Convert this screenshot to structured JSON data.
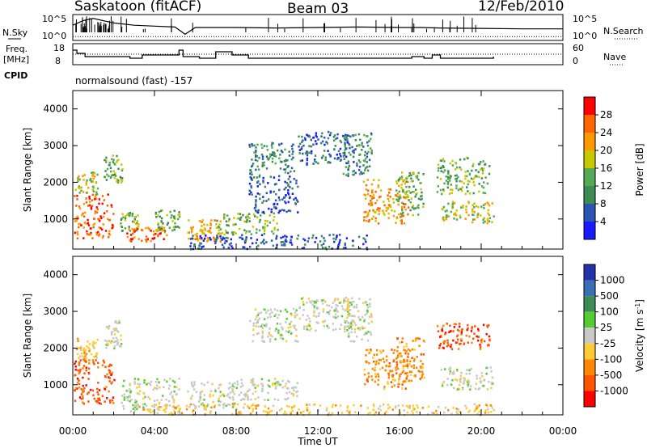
{
  "header": {
    "station": "Saskatoon (fitACF)",
    "beam": "Beam 03",
    "date": "12/Feb/2010"
  },
  "panel_labels": {
    "nsky": "N.Sky",
    "nsearch": "N.Search",
    "freq_top": "Freq.",
    "freq_unit": "[MHz]",
    "nave": "Nave",
    "cpid": "CPID",
    "cpid_value": "normalsound (fast) -157",
    "noise_ticks_left": [
      "10^5",
      "10^0"
    ],
    "noise_ticks_right": [
      "10^5",
      "10^0"
    ],
    "freq_ticks_left": [
      "18",
      "8"
    ],
    "freq_ticks_right": [
      "60",
      "0"
    ]
  },
  "colors": {
    "power": [
      "#1a1aff",
      "#2a55b3",
      "#3c8c55",
      "#55aa55",
      "#c8c800",
      "#ff9900",
      "#ff6600",
      "#ff0000"
    ],
    "velocity": [
      "#ff0000",
      "#ff5500",
      "#ff8800",
      "#ffcc33",
      "#c8c8c8",
      "#55cc33",
      "#3c8c55",
      "#3a6fb8",
      "#2233aa"
    ]
  },
  "chart_data": [
    {
      "type": "line",
      "name": "noise",
      "x_unit": "hours UT",
      "xlim": [
        0,
        24
      ],
      "series": [
        {
          "name": "N.Sky",
          "x": [
            0,
            0.5,
            1,
            2,
            3,
            4,
            5,
            5.5,
            6,
            8,
            10,
            12,
            14,
            16,
            17,
            18,
            20,
            22,
            24
          ],
          "y": [
            3,
            4,
            4.5,
            3.5,
            3,
            2.8,
            2.6,
            1,
            2.5,
            2.5,
            2.4,
            2.5,
            2.6,
            2.5,
            2.5,
            2.4,
            2.3,
            2.2,
            2.2
          ]
        },
        {
          "name": "N.Search",
          "x": [
            0,
            24
          ],
          "y": [
            0.5,
            0.5
          ]
        }
      ]
    },
    {
      "type": "line",
      "name": "frequency",
      "x_unit": "hours UT",
      "xlim": [
        0,
        24
      ],
      "ylim": [
        8,
        18
      ],
      "y2lim": [
        0,
        60
      ],
      "series": [
        {
          "name": "Freq",
          "x": [
            0,
            0.2,
            0.6,
            2.8,
            3.4,
            5.2,
            5.4,
            6.2,
            7,
            7.8,
            8.6,
            10.4,
            12.8,
            14,
            14.6,
            15.8,
            16.6,
            17.2,
            17.6,
            18,
            18.8,
            19.4,
            19.8,
            20.4,
            20.6
          ],
          "y": [
            16,
            14,
            12,
            11,
            13,
            16,
            12,
            11,
            15,
            13,
            11,
            11,
            11,
            11,
            11,
            11,
            12,
            11,
            13,
            11,
            11,
            11,
            11,
            11,
            12
          ]
        },
        {
          "name": "Nave",
          "x": [
            0,
            24
          ],
          "y": [
            33,
            33
          ]
        }
      ]
    },
    {
      "type": "heatmap",
      "name": "power",
      "xlabel": "",
      "ylabel": "Slant Range [km]",
      "colorbar_label": "Power [dB]",
      "xlim": [
        0,
        24
      ],
      "ylim": [
        180,
        4500
      ],
      "yticks": [
        1000,
        2000,
        3000,
        4000
      ],
      "color_ticks": [
        4,
        8,
        12,
        16,
        20,
        24,
        28
      ],
      "color_range": [
        0,
        32
      ],
      "regions": [
        {
          "t0": 0.0,
          "t1": 2.0,
          "r0": 500,
          "r1": 1700,
          "v": 26
        },
        {
          "t0": 0.1,
          "t1": 1.2,
          "r0": 1700,
          "r1": 2300,
          "v": 16
        },
        {
          "t0": 1.5,
          "t1": 2.4,
          "r0": 2000,
          "r1": 2800,
          "v": 12
        },
        {
          "t0": 2.3,
          "t1": 3.2,
          "r0": 700,
          "r1": 1200,
          "v": 14
        },
        {
          "t0": 2.6,
          "t1": 4.6,
          "r0": 400,
          "r1": 800,
          "v": 24
        },
        {
          "t0": 4.0,
          "t1": 5.2,
          "r0": 700,
          "r1": 1300,
          "v": 12
        },
        {
          "t0": 5.6,
          "t1": 7.2,
          "r0": 400,
          "r1": 1000,
          "v": 20
        },
        {
          "t0": 7.0,
          "t1": 10.0,
          "r0": 600,
          "r1": 1200,
          "v": 14
        },
        {
          "t0": 8.6,
          "t1": 11.0,
          "r0": 1200,
          "r1": 2200,
          "v": 6
        },
        {
          "t0": 8.6,
          "t1": 10.8,
          "r0": 2200,
          "r1": 3100,
          "v": 8
        },
        {
          "t0": 11.0,
          "t1": 13.8,
          "r0": 2500,
          "r1": 3400,
          "v": 6
        },
        {
          "t0": 5.5,
          "t1": 14.5,
          "r0": 200,
          "r1": 600,
          "v": 6
        },
        {
          "t0": 13.2,
          "t1": 14.6,
          "r0": 2200,
          "r1": 3400,
          "v": 8
        },
        {
          "t0": 14.2,
          "t1": 16.4,
          "r0": 900,
          "r1": 2100,
          "v": 20
        },
        {
          "t0": 15.8,
          "t1": 17.2,
          "r0": 1100,
          "r1": 2300,
          "v": 12
        },
        {
          "t0": 17.8,
          "t1": 20.4,
          "r0": 1700,
          "r1": 2700,
          "v": 14
        },
        {
          "t0": 18.0,
          "t1": 20.6,
          "r0": 900,
          "r1": 1500,
          "v": 18
        }
      ]
    },
    {
      "type": "heatmap",
      "name": "velocity",
      "xlabel": "Time UT",
      "ylabel": "Slant Range [km]",
      "colorbar_label": "Velocity [m s^-1]",
      "xlim": [
        0,
        24
      ],
      "ylim": [
        180,
        4500
      ],
      "xticks": [
        "00:00",
        "04:00",
        "08:00",
        "12:00",
        "16:00",
        "20:00",
        "00:00"
      ],
      "yticks": [
        1000,
        2000,
        3000,
        4000
      ],
      "color_ticks": [
        "1000",
        "500",
        "100",
        "25",
        "-25",
        "-100",
        "-500",
        "-1000"
      ],
      "regions": [
        {
          "t0": 0.0,
          "t1": 2.0,
          "r0": 500,
          "r1": 1700,
          "v": 1
        },
        {
          "t0": 0.1,
          "t1": 1.2,
          "r0": 1700,
          "r1": 2300,
          "v": 3
        },
        {
          "t0": 1.5,
          "t1": 2.4,
          "r0": 2000,
          "r1": 2800,
          "v": 4
        },
        {
          "t0": 2.3,
          "t1": 5.2,
          "r0": 300,
          "r1": 1200,
          "v": 4
        },
        {
          "t0": 5.6,
          "t1": 8.0,
          "r0": 400,
          "r1": 1100,
          "v": 4
        },
        {
          "t0": 8.0,
          "t1": 11.0,
          "r0": 600,
          "r1": 1200,
          "v": 4
        },
        {
          "t0": 8.6,
          "t1": 11.0,
          "r0": 2200,
          "r1": 3100,
          "v": 4
        },
        {
          "t0": 11.0,
          "t1": 13.8,
          "r0": 2500,
          "r1": 3400,
          "v": 4
        },
        {
          "t0": 3.0,
          "t1": 20.6,
          "r0": 200,
          "r1": 500,
          "v": 3
        },
        {
          "t0": 13.2,
          "t1": 14.6,
          "r0": 2200,
          "r1": 3400,
          "v": 4
        },
        {
          "t0": 14.2,
          "t1": 16.4,
          "r0": 900,
          "r1": 2000,
          "v": 2
        },
        {
          "t0": 15.8,
          "t1": 17.2,
          "r0": 1100,
          "r1": 2300,
          "v": 2
        },
        {
          "t0": 17.8,
          "t1": 20.4,
          "r0": 2000,
          "r1": 2700,
          "v": 1
        },
        {
          "t0": 18.0,
          "t1": 20.6,
          "r0": 900,
          "r1": 1500,
          "v": 4
        }
      ]
    }
  ]
}
